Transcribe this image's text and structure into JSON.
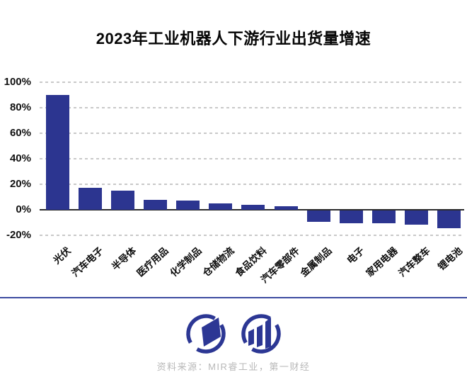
{
  "title": "2023年工业机器人下游行业出货量增速",
  "source": "资料来源：MIR睿工业，第一财经",
  "colors": {
    "bar": "#2c3590",
    "grid": "#c9c9c9",
    "axis": "#2b2b2b",
    "divider": "#3c4ba0",
    "logo": "#2c3794",
    "muted": "#b8b8b8"
  },
  "chart_data": {
    "type": "bar",
    "title": "2023年工业机器人下游行业出货量增速",
    "categories": [
      "光伏",
      "汽车电子",
      "半导体",
      "医疗用品",
      "化学制品",
      "仓储物流",
      "食品饮料",
      "汽车零部件",
      "金属制品",
      "电子",
      "家用电器",
      "汽车整车",
      "锂电池"
    ],
    "values": [
      90,
      17,
      15,
      8,
      7,
      5,
      4,
      3,
      -9,
      -10,
      -10,
      -11,
      -14
    ],
    "unit": "%",
    "xlabel": "",
    "ylabel": "",
    "ylim": [
      -20,
      100
    ],
    "yticks": [
      100,
      80,
      60,
      40,
      20,
      0,
      -20
    ],
    "ytick_labels": [
      "100%",
      "80%",
      "60%",
      "40%",
      "20%",
      "0%",
      "-20%"
    ],
    "grid": "horizontal-dashed",
    "legend": "none",
    "bar_color": "#2c3590"
  },
  "footer": {
    "logo_names": [
      "parallelogram-logo",
      "growth-bars-logo"
    ]
  }
}
